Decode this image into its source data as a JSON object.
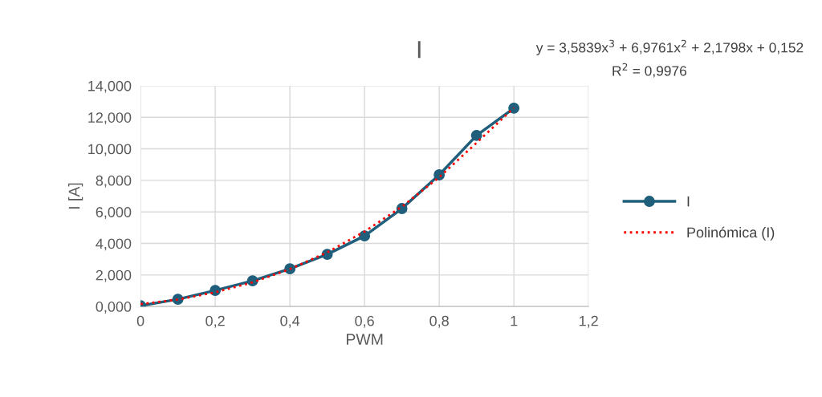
{
  "chart_data": {
    "type": "line",
    "title": "I",
    "xlabel": "PWM",
    "ylabel": "I [A]",
    "x": [
      0,
      0.1,
      0.2,
      0.3,
      0.4,
      0.5,
      0.6,
      0.7,
      0.8,
      0.9,
      1
    ],
    "series": [
      {
        "name": "I",
        "color": "#1f5f7c",
        "marker": "circle",
        "line_style": "solid",
        "values": [
          0.05,
          0.46,
          1.02,
          1.63,
          2.39,
          3.31,
          4.48,
          6.21,
          8.35,
          10.85,
          12.58
        ]
      },
      {
        "name": "Polinómica (I)",
        "color": "#ff0000",
        "marker": "none",
        "line_style": "dotted",
        "x": [
          0,
          0.1,
          0.2,
          0.3,
          0.4,
          0.5,
          0.6,
          0.7,
          0.8,
          0.9,
          1
        ],
        "values": [
          0.15,
          0.44,
          0.9,
          1.53,
          2.37,
          3.43,
          4.75,
          6.33,
          8.2,
          10.38,
          12.6
        ]
      }
    ],
    "annotations": [
      "y = 3,5839x$^{3}$ + 6,9761x$^{2}$ + 2,1798x + 0,152",
      "R$^{2}$ = 0,9976"
    ],
    "xlim": [
      0,
      1.2
    ],
    "xticks": [
      0,
      {
        "value": 0.2,
        "label": "0,2"
      },
      {
        "value": 0.4,
        "label": "0,4"
      },
      {
        "value": 0.6,
        "label": "0,6"
      },
      {
        "value": 0.8,
        "label": "0,8"
      },
      1,
      {
        "value": 1.2,
        "label": "1,2"
      }
    ],
    "ylim": [
      0,
      14
    ],
    "yticks": [
      {
        "value": 0,
        "label": "0,000"
      },
      {
        "value": 2,
        "label": "2,000"
      },
      {
        "value": 4,
        "label": "4,000"
      },
      {
        "value": 6,
        "label": "6,000"
      },
      {
        "value": 8,
        "label": "8,000"
      },
      {
        "value": 10,
        "label": "10,000"
      },
      {
        "value": 12,
        "label": "12,000"
      },
      {
        "value": 14,
        "label": "14,000"
      }
    ],
    "grid": true,
    "legend": "right"
  }
}
